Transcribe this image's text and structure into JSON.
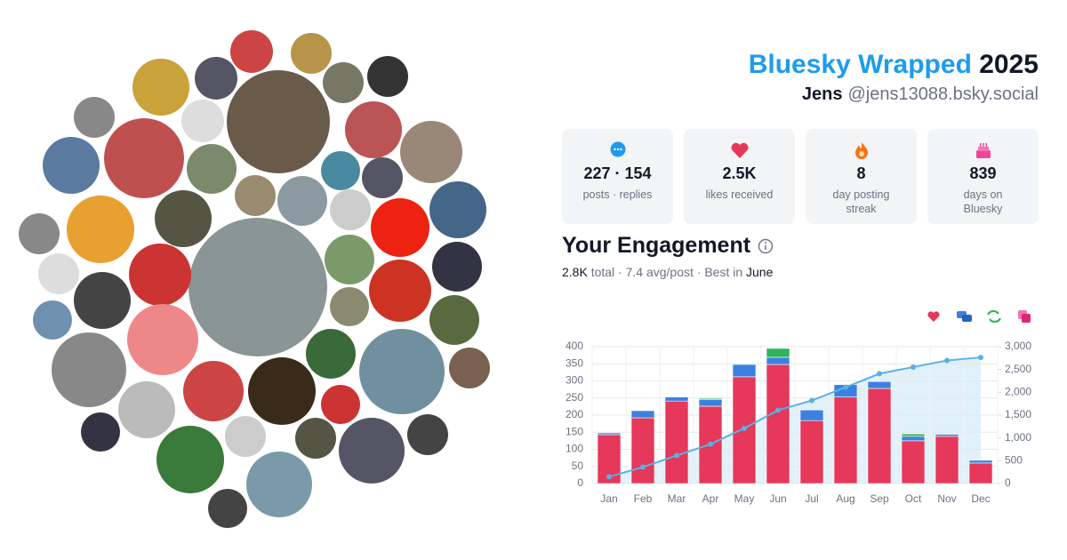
{
  "header": {
    "brand": "Bluesky Wrapped",
    "year": "2025",
    "name": "Jens",
    "handle": "@jens13088.bsky.social"
  },
  "stats": [
    {
      "value": "227 · 154",
      "label": "posts · replies"
    },
    {
      "value": "2.5K",
      "label": "likes received"
    },
    {
      "value": "8",
      "label": "day posting streak"
    },
    {
      "value": "839",
      "label": "days on Bluesky"
    }
  ],
  "engagement": {
    "title": "Your Engagement",
    "summary": [
      "2.8K",
      "total · 7.4 avg/post · Best in",
      "June"
    ]
  },
  "chart_data": {
    "type": "bar",
    "stacked": true,
    "categories": [
      "Jan",
      "Feb",
      "Mar",
      "Apr",
      "May",
      "Jun",
      "Jul",
      "Aug",
      "Sep",
      "Oct",
      "Nov",
      "Dec"
    ],
    "series": [
      {
        "color": "#e5385a",
        "values": [
          143,
          192,
          241,
          226,
          312,
          348,
          184,
          253,
          278,
          125,
          138,
          60
        ]
      },
      {
        "color": "#3b82e0",
        "values": [
          5,
          21,
          12,
          20,
          36,
          21,
          31,
          36,
          20,
          13,
          6,
          8
        ]
      },
      {
        "color": "#2fb35c",
        "values": [
          0,
          0,
          0,
          3,
          0,
          26,
          0,
          0,
          0,
          7,
          0,
          0
        ]
      },
      {
        "type": "line",
        "axis": "y2",
        "color": "#5ab0e6",
        "values": [
          148,
          361,
          614,
          863,
          1211,
          1606,
          1821,
          2110,
          2408,
          2553,
          2697,
          2765
        ]
      }
    ],
    "ylim": [
      0,
      400
    ],
    "yticks": [
      0,
      50,
      100,
      150,
      200,
      250,
      300,
      350,
      400
    ],
    "y2lim": [
      0,
      3000
    ],
    "y2ticks": [
      0,
      500,
      {
        "value": 1000,
        "label": "1,000"
      },
      {
        "value": 1500,
        "label": "1,500"
      },
      {
        "value": 2000,
        "label": "2,000"
      },
      {
        "value": 2500,
        "label": "2,500"
      },
      {
        "value": 3000,
        "label": "3,000"
      }
    ],
    "grid": true
  }
}
